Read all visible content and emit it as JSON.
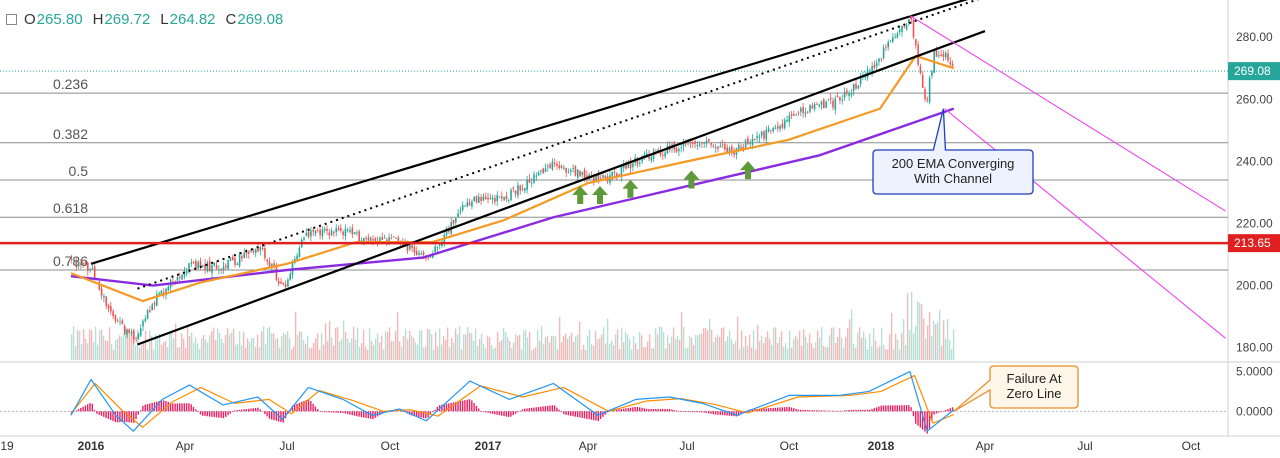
{
  "header": {
    "open_label": "O",
    "open": "265.80",
    "high_label": "H",
    "high": "269.72",
    "low_label": "L",
    "low": "264.82",
    "close_label": "C",
    "close": "269.08"
  },
  "chart_data": [
    {
      "type": "candlestick",
      "title": "",
      "price_axis": {
        "ylim": [
          176,
          292
        ],
        "ticks": [
          "280.00",
          "260.00",
          "240.00",
          "220.00",
          "200.00",
          "180.00"
        ]
      },
      "time_axis": {
        "ticks": [
          "19",
          "2016",
          "Apr",
          "Jul",
          "Oct",
          "2017",
          "Apr",
          "Jul",
          "Oct",
          "2018",
          "Apr",
          "Jul",
          "Oct"
        ],
        "bold": [
          "2016",
          "2017",
          "2018"
        ]
      },
      "last_price": {
        "label": "269.08",
        "value": 269.08,
        "color": "#26a69a"
      },
      "support_line": {
        "label": "213.65",
        "value": 213.65,
        "color": "#e02020"
      },
      "fibonacci": [
        {
          "level": "0.236",
          "price": 262
        },
        {
          "level": "0.382",
          "price": 246
        },
        {
          "level": "0.5",
          "price": 234
        },
        {
          "level": "0.618",
          "price": 222
        },
        {
          "level": "0.786",
          "price": 205
        }
      ],
      "price_path": [
        [
          "2015-12-10",
          208
        ],
        [
          "2016-01-01",
          205
        ],
        [
          "2016-01-20",
          190
        ],
        [
          "2016-02-11",
          183
        ],
        [
          "2016-03-01",
          195
        ],
        [
          "2016-04-01",
          206
        ],
        [
          "2016-05-01",
          206
        ],
        [
          "2016-06-08",
          212
        ],
        [
          "2016-06-27",
          199
        ],
        [
          "2016-07-15",
          216
        ],
        [
          "2016-08-15",
          218
        ],
        [
          "2016-09-09",
          215
        ],
        [
          "2016-10-01",
          215
        ],
        [
          "2016-11-04",
          209
        ],
        [
          "2016-12-13",
          227
        ],
        [
          "2017-01-15",
          228
        ],
        [
          "2017-03-01",
          239
        ],
        [
          "2017-04-13",
          234
        ],
        [
          "2017-05-15",
          240
        ],
        [
          "2017-06-15",
          244
        ],
        [
          "2017-07-15",
          247
        ],
        [
          "2017-08-10",
          243
        ],
        [
          "2017-09-15",
          250
        ],
        [
          "2017-10-15",
          257
        ],
        [
          "2017-11-15",
          259
        ],
        [
          "2017-12-15",
          267
        ],
        [
          "2018-01-26",
          287
        ],
        [
          "2018-02-08",
          258
        ],
        [
          "2018-02-15",
          274
        ],
        [
          "2018-02-25",
          274
        ],
        [
          "2018-03-05",
          269
        ]
      ],
      "ema_50": {
        "color": "#f59a23",
        "points": [
          [
            "2015-12-10",
            204
          ],
          [
            "2016-02-20",
            195
          ],
          [
            "2016-04-15",
            201
          ],
          [
            "2016-07-01",
            207
          ],
          [
            "2016-09-01",
            214
          ],
          [
            "2016-11-10",
            214
          ],
          [
            "2017-01-15",
            221
          ],
          [
            "2017-04-01",
            233
          ],
          [
            "2017-07-01",
            240
          ],
          [
            "2017-10-01",
            247
          ],
          [
            "2017-12-31",
            257
          ],
          [
            "2018-01-31",
            274
          ],
          [
            "2018-03-05",
            270
          ]
        ]
      },
      "ema_200": {
        "color": "#8a2be2",
        "points": [
          [
            "2015-12-10",
            203
          ],
          [
            "2016-03-01",
            200
          ],
          [
            "2016-07-01",
            205
          ],
          [
            "2016-11-01",
            209
          ],
          [
            "2017-03-01",
            222
          ],
          [
            "2017-07-01",
            232
          ],
          [
            "2017-11-01",
            242
          ],
          [
            "2018-03-05",
            257
          ]
        ]
      },
      "channel": {
        "upper": [
          [
            "2016-01-01",
            207
          ],
          [
            "2018-04-01",
            294
          ]
        ],
        "middle_dotted": [
          [
            "2016-02-15",
            199
          ],
          [
            "2018-04-01",
            293
          ]
        ],
        "lower": [
          [
            "2016-02-15",
            181
          ],
          [
            "2018-04-01",
            282
          ]
        ]
      },
      "pink_channel": [
        [
          [
            "2018-01-26",
            287
          ],
          [
            "2018-10-31",
            224
          ]
        ],
        [
          [
            "2018-02-25",
            257
          ],
          [
            "2018-10-31",
            183
          ]
        ]
      ],
      "arrows": [
        {
          "date": "2017-03-25",
          "price": 234
        },
        {
          "date": "2017-04-12",
          "price": 234
        },
        {
          "date": "2017-05-10",
          "price": 236
        },
        {
          "date": "2017-07-05",
          "price": 239
        },
        {
          "date": "2017-08-25",
          "price": 242
        }
      ],
      "annotations": [
        {
          "text": "200 EMA Converging\nWith Channel",
          "pointer": {
            "date": "2018-02-24",
            "price": 257
          }
        }
      ]
    },
    {
      "type": "macd",
      "ylim": [
        -2.6,
        6.2
      ],
      "ticks": [
        "5.0000",
        "0.0000"
      ],
      "macd_line": {
        "color": "#2196f3",
        "points": [
          [
            "2015-12-10",
            -0.5
          ],
          [
            "2016-01-01",
            4
          ],
          [
            "2016-01-25",
            -0.5
          ],
          [
            "2016-02-11",
            -2.5
          ],
          [
            "2016-03-10",
            1.5
          ],
          [
            "2016-04-05",
            3.3
          ],
          [
            "2016-05-05",
            0.8
          ],
          [
            "2016-06-05",
            1.8
          ],
          [
            "2016-06-27",
            -1
          ],
          [
            "2016-07-20",
            3
          ],
          [
            "2016-08-20",
            1.5
          ],
          [
            "2016-09-15",
            -0.5
          ],
          [
            "2016-10-10",
            0.3
          ],
          [
            "2016-11-04",
            -1.2
          ],
          [
            "2016-12-15",
            3.8
          ],
          [
            "2017-01-20",
            1.5
          ],
          [
            "2017-03-01",
            3.5
          ],
          [
            "2017-04-10",
            -0.5
          ],
          [
            "2017-05-15",
            1.5
          ],
          [
            "2017-06-15",
            1.8
          ],
          [
            "2017-07-15",
            1
          ],
          [
            "2017-08-15",
            -0.5
          ],
          [
            "2017-10-01",
            2
          ],
          [
            "2017-11-20",
            2
          ],
          [
            "2017-12-20",
            2.5
          ],
          [
            "2018-01-26",
            5
          ],
          [
            "2018-02-10",
            -2.5
          ],
          [
            "2018-03-05",
            0.2
          ]
        ]
      },
      "signal_line": {
        "color": "#ff8c00",
        "points": [
          [
            "2015-12-10",
            -0.3
          ],
          [
            "2016-01-05",
            3.5
          ],
          [
            "2016-02-01",
            0
          ],
          [
            "2016-02-20",
            -2
          ],
          [
            "2016-03-20",
            1.2
          ],
          [
            "2016-04-15",
            3
          ],
          [
            "2016-05-15",
            1
          ],
          [
            "2016-06-15",
            1.5
          ],
          [
            "2016-07-05",
            -0.3
          ],
          [
            "2016-07-30",
            2.6
          ],
          [
            "2016-08-30",
            1.3
          ],
          [
            "2016-09-25",
            0
          ],
          [
            "2016-10-20",
            0.2
          ],
          [
            "2016-11-15",
            -0.6
          ],
          [
            "2016-12-25",
            3.2
          ],
          [
            "2017-02-01",
            1.8
          ],
          [
            "2017-03-10",
            3
          ],
          [
            "2017-04-20",
            0
          ],
          [
            "2017-05-25",
            1.3
          ],
          [
            "2017-06-25",
            1.6
          ],
          [
            "2017-07-25",
            0.9
          ],
          [
            "2017-08-25",
            -0.2
          ],
          [
            "2017-10-10",
            1.8
          ],
          [
            "2017-12-01",
            2
          ],
          [
            "2018-01-01",
            2.5
          ],
          [
            "2018-01-30",
            4.5
          ],
          [
            "2018-02-15",
            -1.5
          ],
          [
            "2018-03-05",
            -0.4
          ]
        ]
      },
      "histogram_color": "#e91e63",
      "annotations": [
        {
          "text": "Failure At\nZero Line",
          "pointer": {
            "date": "2018-03-05",
            "value": 0
          }
        }
      ]
    }
  ],
  "colors": {
    "bull": "#26a69a",
    "bear": "#ef5350",
    "channel": "#000000",
    "pink": "#ee44ee",
    "arrow": "#5d9b3a",
    "callout_blue": "#1f3fbf",
    "callout_orange": "#e8902a"
  }
}
